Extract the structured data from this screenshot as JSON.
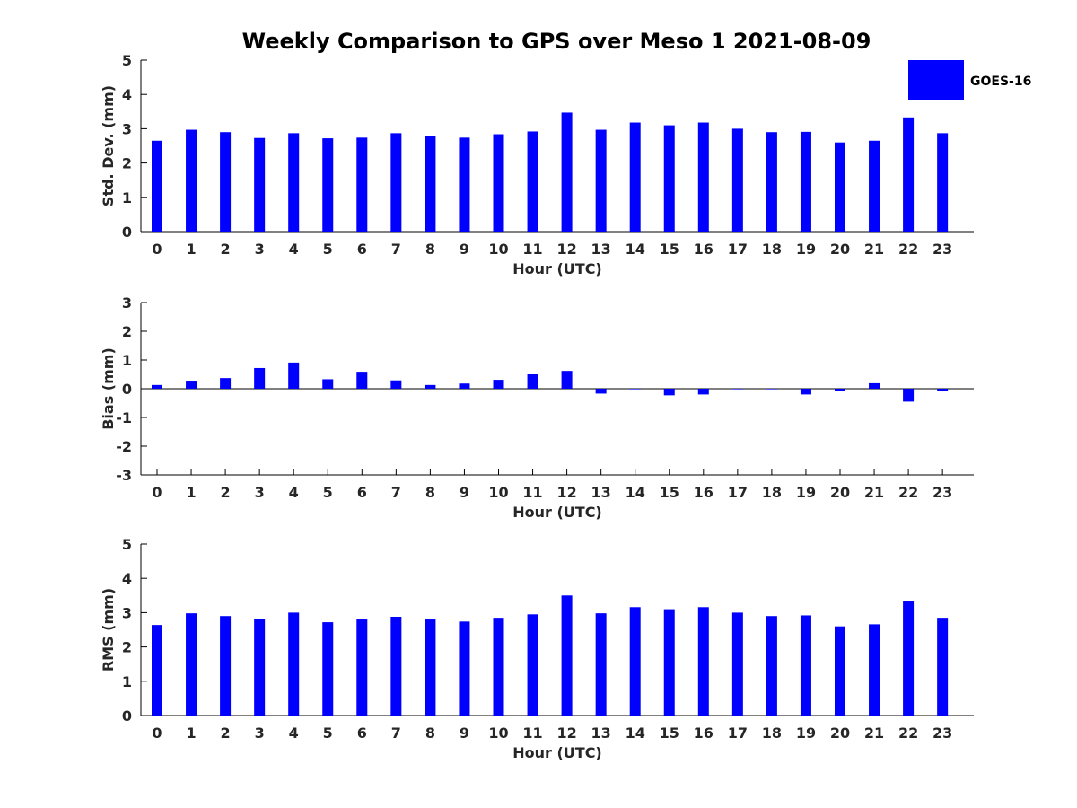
{
  "chart_data": {
    "type": "bar",
    "title": "Weekly Comparison to GPS over Meso 1 2021-08-09",
    "legend": {
      "label": "GOES-16",
      "color": "#0000ff",
      "placement": "top-right"
    },
    "bar_color": "#0000ff",
    "categories": [
      "0",
      "1",
      "2",
      "3",
      "4",
      "5",
      "6",
      "7",
      "8",
      "9",
      "10",
      "11",
      "12",
      "13",
      "14",
      "15",
      "16",
      "17",
      "18",
      "19",
      "20",
      "21",
      "22",
      "23"
    ],
    "panels": [
      {
        "name": "std-dev",
        "ylabel": "Std. Dev. (mm)",
        "xlabel": "Hour (UTC)",
        "ylim": [
          0,
          5
        ],
        "yticks": [
          "0",
          "1",
          "2",
          "3",
          "4",
          "5"
        ],
        "series": [
          {
            "name": "GOES-16",
            "values": [
              2.65,
              2.97,
              2.9,
              2.73,
              2.87,
              2.72,
              2.74,
              2.87,
              2.8,
              2.74,
              2.84,
              2.92,
              3.47,
              2.97,
              3.18,
              3.1,
              3.18,
              3.0,
              2.9,
              2.91,
              2.6,
              2.65,
              3.33,
              2.87
            ]
          }
        ]
      },
      {
        "name": "bias",
        "ylabel": "Bias (mm)",
        "xlabel": "Hour (UTC)",
        "ylim": [
          -3,
          3
        ],
        "yticks": [
          "-3",
          "-2",
          "-1",
          "0",
          "1",
          "2",
          "3"
        ],
        "series": [
          {
            "name": "GOES-16",
            "values": [
              0.13,
              0.28,
              0.37,
              0.72,
              0.91,
              0.33,
              0.59,
              0.29,
              0.13,
              0.18,
              0.31,
              0.5,
              0.62,
              -0.17,
              -0.02,
              -0.23,
              -0.2,
              -0.02,
              -0.02,
              -0.2,
              -0.07,
              0.19,
              -0.45,
              -0.07
            ]
          }
        ]
      },
      {
        "name": "rms",
        "ylabel": "RMS (mm)",
        "xlabel": "Hour (UTC)",
        "ylim": [
          0,
          5
        ],
        "yticks": [
          "0",
          "1",
          "2",
          "3",
          "4",
          "5"
        ],
        "series": [
          {
            "name": "GOES-16",
            "values": [
              2.64,
              2.98,
              2.9,
              2.82,
              3.0,
              2.72,
              2.8,
              2.88,
              2.8,
              2.74,
              2.85,
              2.95,
              3.5,
              2.98,
              3.16,
              3.1,
              3.16,
              3.0,
              2.9,
              2.92,
              2.6,
              2.66,
              3.35,
              2.85
            ]
          }
        ]
      }
    ]
  }
}
